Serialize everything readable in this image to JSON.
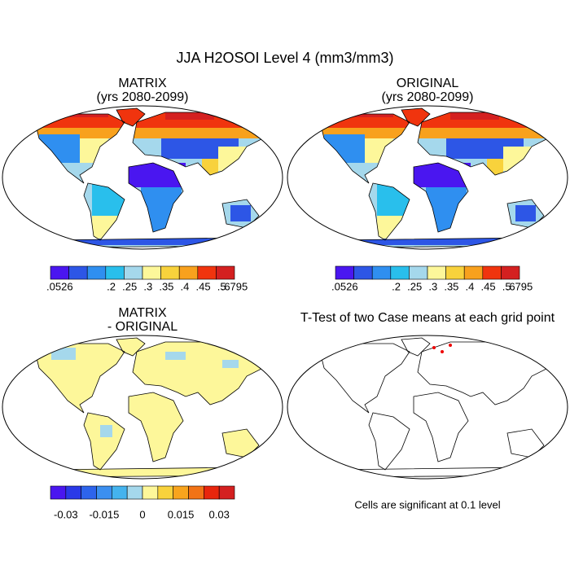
{
  "title": "JJA H2OSOI Level 4 (mm3/mm3)",
  "panels": [
    {
      "title": [
        "MATRIX",
        "(yrs 2080-2099)"
      ],
      "map": "soil",
      "colorbar": {
        "labels": [
          ".0526",
          ".2",
          ".25",
          ".3",
          ".35",
          ".4",
          ".45",
          ".5",
          ".6795"
        ],
        "colors": [
          "#4a16f0",
          "#2d56e6",
          "#2f8ff0",
          "#29bfec",
          "#a5d8ec",
          "#fdf79a",
          "#f8d23c",
          "#f8a11d",
          "#f0340e",
          "#d42020"
        ]
      }
    },
    {
      "title": [
        "ORIGINAL",
        "(yrs 2080-2099)"
      ],
      "map": "soil",
      "colorbar": {
        "labels": [
          ".0526",
          ".2",
          ".25",
          ".3",
          ".35",
          ".4",
          ".45",
          ".5",
          ".6795"
        ],
        "colors": [
          "#4a16f0",
          "#2d56e6",
          "#2f8ff0",
          "#29bfec",
          "#a5d8ec",
          "#fdf79a",
          "#f8d23c",
          "#f8a11d",
          "#f0340e",
          "#d42020"
        ]
      }
    },
    {
      "title": [
        "MATRIX",
        "- ORIGINAL"
      ],
      "map": "diff",
      "colorbar": {
        "labels": [
          "-0.03",
          "-0.015",
          "0",
          "0.015",
          "0.03"
        ],
        "colors": [
          "#4a16f0",
          "#2a39e8",
          "#2d64ec",
          "#3b8ff0",
          "#44b3ee",
          "#a5d8ec",
          "#fdf79a",
          "#f8d23c",
          "#f8a41d",
          "#f27316",
          "#e8260d",
          "#d42020"
        ]
      }
    },
    {
      "title": [
        "T-Test of two Case means at each grid point"
      ],
      "map": "ttest",
      "note": "Cells are significant at 0.1 level"
    }
  ]
}
